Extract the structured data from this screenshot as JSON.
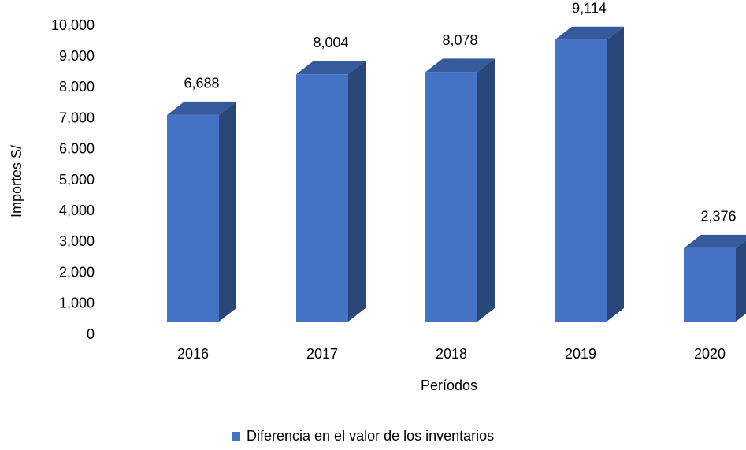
{
  "chart_data": {
    "type": "bar3d",
    "x_label": "Períodos",
    "y_label": "Importes S/",
    "categories": [
      "2016",
      "2017",
      "2018",
      "2019",
      "2020"
    ],
    "series": [
      {
        "name": "Diferencia en el valor de los inventarios",
        "color": "#4472c4",
        "values": [
          6688,
          8004,
          8078,
          9114,
          2376
        ],
        "value_labels": [
          "6,688",
          "8,004",
          "8,078",
          "9,114",
          "2,376"
        ]
      }
    ],
    "ylim": [
      0,
      10000
    ],
    "yticks": [
      0,
      {
        "value": 1000,
        "label": "1,000"
      },
      {
        "value": 2000,
        "label": "2,000"
      },
      {
        "value": 3000,
        "label": "3,000"
      },
      {
        "value": 4000,
        "label": "4,000"
      },
      {
        "value": 5000,
        "label": "5,000"
      },
      {
        "value": 6000,
        "label": "6,000"
      },
      {
        "value": 7000,
        "label": "7,000"
      },
      {
        "value": 8000,
        "label": "8,000"
      },
      {
        "value": 9000,
        "label": "9,000"
      },
      {
        "value": 10000,
        "label": "10,000"
      }
    ],
    "legend": "bottom",
    "grid": false
  }
}
